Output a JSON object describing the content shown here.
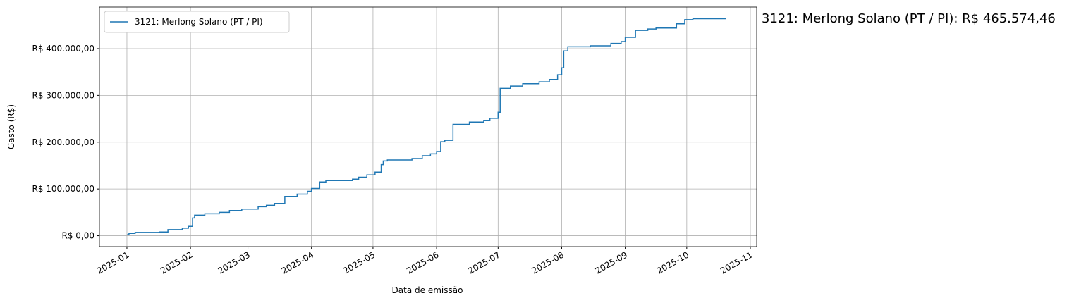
{
  "chart_data": {
    "type": "step",
    "x_label": "Data de emissão",
    "y_label": "Gasto (R$)",
    "annotation": "3121: Merlong Solano (PT / PI): R$ 465.574,46",
    "x": [
      0,
      1,
      4,
      16,
      20,
      27,
      30,
      32,
      33,
      38,
      45,
      50,
      56,
      64,
      68,
      72,
      77,
      83,
      88,
      90,
      94,
      97,
      110,
      113,
      117,
      121,
      124,
      125,
      127,
      139,
      144,
      148,
      151,
      153,
      155,
      159,
      167,
      174,
      177,
      181,
      182,
      187,
      193,
      201,
      206,
      210,
      212,
      213,
      215,
      226,
      236,
      241,
      243,
      248,
      254,
      258,
      268,
      272,
      276,
      292
    ],
    "series": [
      {
        "name": "3121: Merlong Solano (PT / PI)",
        "color": "#1f77b4",
        "values": [
          2000,
          5000,
          7000,
          8000,
          13000,
          16000,
          20000,
          38000,
          44000,
          47000,
          50000,
          54000,
          57000,
          62000,
          65000,
          69000,
          84000,
          89000,
          95000,
          101000,
          115000,
          118000,
          121000,
          125000,
          130000,
          136000,
          152000,
          160000,
          162000,
          165000,
          171000,
          175000,
          180000,
          201000,
          204000,
          238000,
          243000,
          246000,
          251000,
          264000,
          315000,
          320000,
          325000,
          329000,
          334000,
          344000,
          359000,
          395000,
          404000,
          406000,
          411000,
          415000,
          424000,
          439000,
          442000,
          444000,
          453000,
          462000,
          464000,
          465574.46
        ]
      }
    ],
    "xlim": [
      -13.4,
      307.1
    ],
    "xticks": [
      {
        "value": 0,
        "label": "2025-01"
      },
      {
        "value": 31,
        "label": "2025-02"
      },
      {
        "value": 59,
        "label": "2025-03"
      },
      {
        "value": 90,
        "label": "2025-04"
      },
      {
        "value": 120,
        "label": "2025-05"
      },
      {
        "value": 151,
        "label": "2025-06"
      },
      {
        "value": 181,
        "label": "2025-07"
      },
      {
        "value": 212,
        "label": "2025-08"
      },
      {
        "value": 243,
        "label": "2025-09"
      },
      {
        "value": 273,
        "label": "2025-10"
      },
      {
        "value": 304,
        "label": "2025-11"
      }
    ],
    "ylim": [
      -23279,
      488853
    ],
    "yticks": [
      {
        "value": 0,
        "label": "R$ 0,00"
      },
      {
        "value": 100000,
        "label": "R$ 100.000,00"
      },
      {
        "value": 200000,
        "label": "R$ 200.000,00"
      },
      {
        "value": 300000,
        "label": "R$ 300.000,00"
      },
      {
        "value": 400000,
        "label": "R$ 400.000,00"
      }
    ],
    "grid": true,
    "legend": "upper left"
  }
}
